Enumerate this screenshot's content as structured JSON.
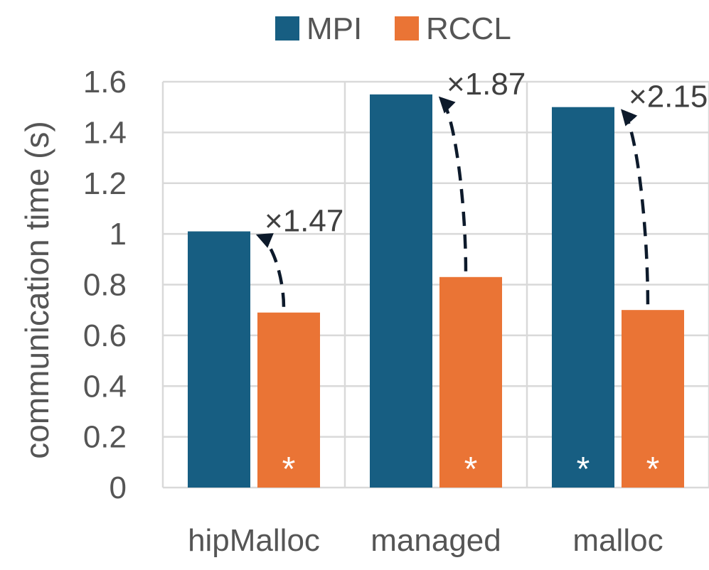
{
  "chart_data": {
    "type": "bar",
    "title": "",
    "xlabel": "",
    "ylabel": "communication time (s)",
    "ylim": [
      0,
      1.6
    ],
    "yticks": [
      {
        "value": 0,
        "label": "0"
      },
      {
        "value": 0.2,
        "label": "0.2"
      },
      {
        "value": 0.4,
        "label": "0.4"
      },
      {
        "value": 0.6,
        "label": "0.6"
      },
      {
        "value": 0.8,
        "label": "0.8"
      },
      {
        "value": 1.0,
        "label": "1"
      },
      {
        "value": 1.2,
        "label": "1.2"
      },
      {
        "value": 1.4,
        "label": "1.4"
      },
      {
        "value": 1.6,
        "label": "1.6"
      }
    ],
    "grid": true,
    "legend": "top",
    "categories": [
      "hipMalloc",
      "managed",
      "malloc"
    ],
    "series": [
      {
        "name": "MPI",
        "color": "#175e82",
        "values": [
          1.01,
          1.55,
          1.5
        ],
        "markers": [
          "",
          "",
          "*"
        ]
      },
      {
        "name": "RCCL",
        "color": "#ea7435",
        "values": [
          0.69,
          0.83,
          0.7
        ],
        "markers": [
          "*",
          "*",
          "*"
        ]
      }
    ],
    "annotations": [
      {
        "label": "×1.47",
        "category": "hipMalloc"
      },
      {
        "label": "×1.87",
        "category": "managed"
      },
      {
        "label": "×2.15",
        "category": "malloc"
      }
    ]
  }
}
